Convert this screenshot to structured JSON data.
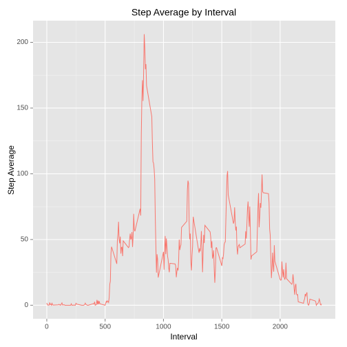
{
  "chart_data": {
    "type": "line",
    "title": "Step Average by Interval",
    "x_label": "Interval",
    "y_label": "Step Average",
    "color": "#F8766D",
    "grid": true,
    "xlim": [
      -117.75,
      2472.75
    ],
    "xticks": [
      0,
      500,
      1000,
      1500,
      2000
    ],
    "ylim": [
      -10.3,
      216.5
    ],
    "yticks": [
      0,
      50,
      100,
      150,
      200
    ],
    "x": [
      0,
      5,
      10,
      15,
      20,
      25,
      30,
      35,
      40,
      45,
      50,
      55,
      100,
      105,
      110,
      115,
      120,
      125,
      130,
      135,
      140,
      145,
      150,
      155,
      200,
      205,
      210,
      215,
      220,
      225,
      230,
      235,
      240,
      245,
      250,
      255,
      300,
      305,
      310,
      315,
      320,
      325,
      330,
      335,
      340,
      345,
      350,
      355,
      400,
      405,
      410,
      415,
      420,
      425,
      430,
      435,
      440,
      445,
      450,
      455,
      500,
      505,
      510,
      515,
      520,
      525,
      530,
      535,
      540,
      545,
      550,
      555,
      600,
      605,
      610,
      615,
      620,
      625,
      630,
      635,
      640,
      645,
      650,
      655,
      700,
      705,
      710,
      715,
      720,
      725,
      730,
      735,
      740,
      745,
      750,
      755,
      800,
      805,
      810,
      815,
      820,
      825,
      830,
      835,
      840,
      845,
      850,
      855,
      900,
      905,
      910,
      915,
      920,
      925,
      930,
      935,
      940,
      945,
      950,
      955,
      1000,
      1005,
      1010,
      1015,
      1020,
      1025,
      1030,
      1035,
      1040,
      1045,
      1050,
      1055,
      1100,
      1105,
      1110,
      1115,
      1120,
      1125,
      1130,
      1135,
      1140,
      1145,
      1150,
      1155,
      1200,
      1205,
      1210,
      1215,
      1220,
      1225,
      1230,
      1235,
      1240,
      1245,
      1250,
      1255,
      1300,
      1305,
      1310,
      1315,
      1320,
      1325,
      1330,
      1335,
      1340,
      1345,
      1350,
      1355,
      1400,
      1405,
      1410,
      1415,
      1420,
      1425,
      1430,
      1435,
      1440,
      1445,
      1450,
      1455,
      1500,
      1505,
      1510,
      1515,
      1520,
      1525,
      1530,
      1535,
      1540,
      1545,
      1550,
      1555,
      1600,
      1605,
      1610,
      1615,
      1620,
      1625,
      1630,
      1635,
      1640,
      1645,
      1650,
      1655,
      1700,
      1705,
      1710,
      1715,
      1720,
      1725,
      1730,
      1735,
      1740,
      1745,
      1750,
      1755,
      1800,
      1805,
      1810,
      1815,
      1820,
      1825,
      1830,
      1835,
      1840,
      1845,
      1850,
      1855,
      1900,
      1905,
      1910,
      1915,
      1920,
      1925,
      1930,
      1935,
      1940,
      1945,
      1950,
      1955,
      2000,
      2005,
      2010,
      2015,
      2020,
      2025,
      2030,
      2035,
      2040,
      2045,
      2050,
      2055,
      2100,
      2105,
      2110,
      2115,
      2120,
      2125,
      2130,
      2135,
      2140,
      2145,
      2150,
      2155,
      2200,
      2205,
      2210,
      2215,
      2220,
      2225,
      2230,
      2235,
      2240,
      2245,
      2250,
      2255,
      2300,
      2305,
      2310,
      2315,
      2320,
      2325,
      2330,
      2335,
      2340,
      2345,
      2350,
      2355
    ],
    "values": [
      1.7,
      0.3,
      0.1,
      0.2,
      0.1,
      2.1,
      0.5,
      0.9,
      0,
      1.5,
      0.3,
      0.1,
      0.3,
      0.7,
      0.2,
      0.3,
      0,
      1.1,
      1.8,
      0.2,
      0.2,
      0.4,
      0.3,
      0,
      0,
      0,
      1.1,
      0,
      0,
      0.1,
      0,
      0.2,
      0,
      0,
      1.5,
      0.9,
      0,
      0,
      0,
      0,
      0.2,
      0.6,
      1.6,
      0.6,
      0.5,
      0.1,
      0,
      0,
      1.2,
      0.9,
      2.6,
      0,
      0.3,
      0.4,
      4.1,
      0.7,
      3.5,
      0.8,
      3.1,
      1.1,
      0,
      1.6,
      3,
      2.2,
      3.3,
      3,
      2.1,
      6.1,
      16,
      18.3,
      39.5,
      44.5,
      31.5,
      49.3,
      53.8,
      63.5,
      50,
      47.1,
      52.2,
      39.3,
      44,
      44.2,
      37.4,
      49,
      43.8,
      44.4,
      50.5,
      54.5,
      49.9,
      51,
      55.7,
      44.3,
      52.3,
      69.5,
      57.8,
      56.2,
      73.4,
      68.2,
      129.4,
      157.5,
      171.2,
      155.4,
      177.3,
      206.2,
      195.9,
      179.6,
      183.4,
      167,
      143.5,
      124,
      109.1,
      108.1,
      103.7,
      96,
      66.2,
      45.2,
      24.8,
      38.8,
      35,
      21.1,
      40.6,
      27,
      42.4,
      52.7,
      38.9,
      50.8,
      44.3,
      37.4,
      34.7,
      28.3,
      25.1,
      31.9,
      31.4,
      29.7,
      21.3,
      25.5,
      28.4,
      26.5,
      33.4,
      50,
      42,
      44.6,
      46,
      59.2,
      63.9,
      87.7,
      94.8,
      92.8,
      63.4,
      50.2,
      54.5,
      32.4,
      26.5,
      37.7,
      45.1,
      67.3,
      42.3,
      39.9,
      43.3,
      41,
      46.2,
      56.4,
      42.8,
      25.1,
      40,
      53.5,
      47.3,
      60.8,
      55.8,
      51.9,
      43.6,
      48.7,
      35.5,
      37.5,
      41.8,
      27.5,
      17.1,
      26.1,
      43.6,
      43.8,
      30,
      36.1,
      35.5,
      38.8,
      46,
      47.8,
      48.1,
      65.3,
      82.9,
      98.7,
      102.1,
      84,
      62.1,
      64.1,
      74.5,
      63.2,
      56.9,
      59.8,
      43.9,
      38.6,
      44.7,
      45.5,
      46.2,
      43.7,
      46.6,
      56.3,
      50.7,
      61.2,
      72.7,
      78.9,
      68.9,
      59.7,
      75.1,
      56.5,
      34.8,
      37.5,
      40.7,
      58,
      74.7,
      85.3,
      59.3,
      67.8,
      77.7,
      74.2,
      85.3,
      99.5,
      86.6,
      85.6,
      84.9,
      77.8,
      58,
      53.4,
      36.3,
      20.7,
      27.4,
      40,
      30.2,
      25.5,
      45.7,
      33.5,
      19.6,
      19,
      19.3,
      33.3,
      26.8,
      21.2,
      27.3,
      21.3,
      19.5,
      21.3,
      32.3,
      20.2,
      15.9,
      17.2,
      23.5,
      19.2,
      12.5,
      8,
      14.7,
      16.3,
      8.7,
      7.8,
      8.1,
      2.6,
      1.5,
      3.7,
      4.8,
      8.5,
      7.1,
      8.7,
      9.8,
      2.2,
      0.3,
      0.1,
      1.6,
      4.6,
      3.3,
      2.8,
      0,
      0.8,
      1,
      1.6,
      2.6,
      4.7,
      3.3,
      0.6,
      0.2,
      1.1
    ]
  }
}
